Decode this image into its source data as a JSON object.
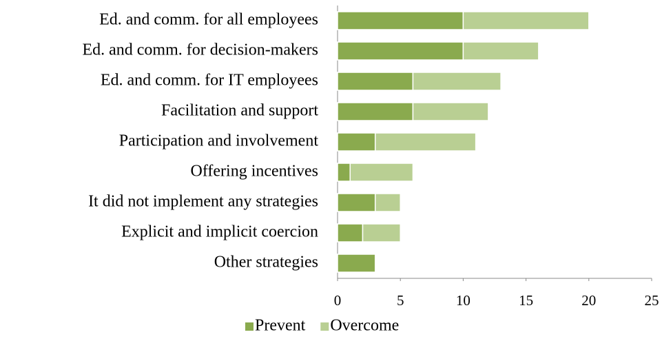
{
  "chart_data": {
    "type": "stacked_barh",
    "categories": [
      "Ed. and comm. for all employees",
      "Ed. and comm. for decision-makers",
      "Ed. and comm. for IT employees",
      "Facilitation and support",
      "Participation and involvement",
      "Offering incentives",
      "It did not implement any strategies",
      "Explicit and implicit coercion",
      "Other strategies"
    ],
    "series": [
      {
        "name": "Prevent",
        "color": "#8aaa4e",
        "values": [
          10,
          10,
          6,
          6,
          3,
          1,
          3,
          2,
          3
        ]
      },
      {
        "name": "Overcome",
        "color": "#b9cf93",
        "values": [
          10,
          6,
          7,
          6,
          8,
          5,
          2,
          3,
          0
        ]
      }
    ],
    "xlim": [
      0,
      25
    ],
    "xticks": [
      0,
      5,
      10,
      15,
      20,
      25
    ],
    "legend": "bottom"
  }
}
